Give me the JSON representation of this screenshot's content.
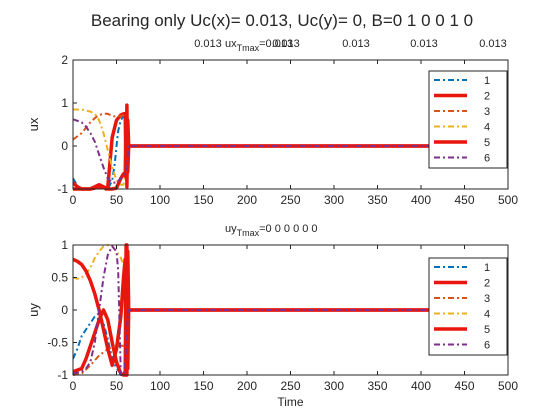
{
  "figure": {
    "title": "Bearing only    Uc(x)= 0.013, Uc(y)= 0, B=0  1  0  0  1  0"
  },
  "chart_data": [
    {
      "type": "line",
      "xlabel": "",
      "ylabel": "ux",
      "subtitle_prefix": "ux",
      "subtitle_sub": "Tmax",
      "subtitle_values": [
        "=0.013",
        "0.013",
        "0.013",
        "0.013",
        "0.013",
        "0.013"
      ],
      "xlim": [
        0,
        500
      ],
      "ylim": [
        -1,
        2
      ],
      "xticks": [
        0,
        50,
        100,
        150,
        200,
        250,
        300,
        350,
        400,
        450,
        500
      ],
      "yticks": [
        -1,
        0,
        1,
        2
      ],
      "grid": false,
      "legend_position": "top-right",
      "series": [
        {
          "name": "1",
          "color": "#0072BD",
          "style": "dashdot",
          "width": 2,
          "x": [
            0,
            5,
            10,
            15,
            20,
            25,
            30,
            35,
            40,
            45,
            48,
            50,
            52,
            55,
            58,
            60,
            62,
            63,
            64,
            500
          ],
          "y": [
            -0.75,
            -0.92,
            -1,
            -1,
            -0.97,
            -0.95,
            -0.95,
            -0.97,
            -1,
            -0.8,
            -0.4,
            0,
            0.35,
            0.6,
            0.7,
            0.7,
            0.7,
            0.3,
            0,
            0
          ]
        },
        {
          "name": "2",
          "color": "#E8160C",
          "style": "solid",
          "width": 3.5,
          "x": [
            0,
            10,
            20,
            25,
            30,
            35,
            38,
            40,
            42,
            45,
            50,
            55,
            58,
            60,
            61,
            62,
            63,
            64,
            500
          ],
          "y": [
            -1,
            -1,
            -1,
            -0.95,
            -0.9,
            -0.95,
            -1,
            -0.95,
            -0.5,
            0.2,
            0.6,
            0.72,
            0.75,
            0.75,
            -0.7,
            0.95,
            -0.6,
            0,
            0
          ]
        },
        {
          "name": "3",
          "color": "#D95319",
          "style": "dashdot",
          "width": 2,
          "x": [
            0,
            10,
            20,
            25,
            30,
            35,
            40,
            45,
            50,
            55,
            60,
            62,
            63,
            64,
            500
          ],
          "y": [
            0.15,
            0.3,
            0.55,
            0.65,
            0.72,
            0.75,
            0.75,
            0.7,
            0.68,
            0.7,
            0.72,
            0.72,
            0.3,
            0,
            0
          ]
        },
        {
          "name": "4",
          "color": "#EDB120",
          "style": "dashdot",
          "width": 2,
          "x": [
            0,
            10,
            20,
            25,
            30,
            35,
            40,
            45,
            50,
            55,
            58,
            60,
            62,
            63,
            64,
            500
          ],
          "y": [
            0.85,
            0.85,
            0.8,
            0.75,
            0.6,
            0.3,
            -0.1,
            -0.5,
            -0.8,
            -0.9,
            -0.9,
            -0.7,
            -0.4,
            -0.1,
            0,
            0
          ]
        },
        {
          "name": "5",
          "color": "#E8160C",
          "style": "solid",
          "width": 3.5,
          "x": [
            0,
            5,
            10,
            15,
            20,
            25,
            30,
            35,
            40,
            45,
            50,
            55,
            58,
            60,
            61,
            62,
            63,
            64,
            500
          ],
          "y": [
            -0.85,
            -0.95,
            -1,
            -1,
            -1,
            -0.98,
            -0.95,
            -0.95,
            -1,
            -1,
            -0.98,
            -0.75,
            -0.65,
            -0.7,
            0.7,
            -0.95,
            0.6,
            0,
            0
          ]
        },
        {
          "name": "6",
          "color": "#7E2F8E",
          "style": "dashdot",
          "width": 2,
          "x": [
            0,
            10,
            15,
            20,
            25,
            30,
            35,
            40,
            45,
            50,
            55,
            60,
            62,
            63,
            64,
            500
          ],
          "y": [
            0.62,
            0.55,
            0.45,
            0.3,
            0.1,
            -0.2,
            -0.5,
            -0.75,
            -0.85,
            -0.85,
            -0.75,
            -0.65,
            -0.6,
            -0.2,
            0,
            0
          ]
        }
      ]
    },
    {
      "type": "line",
      "xlabel": "Time",
      "ylabel": "uy",
      "subtitle_prefix": "uy",
      "subtitle_sub": "Tmax",
      "subtitle_values": [
        "=0  0  0  0  0  0"
      ],
      "xlim": [
        0,
        500
      ],
      "ylim": [
        -1,
        1
      ],
      "xticks": [
        0,
        50,
        100,
        150,
        200,
        250,
        300,
        350,
        400,
        450,
        500
      ],
      "yticks": [
        -1,
        -0.5,
        0,
        0.5,
        1
      ],
      "grid": false,
      "legend_position": "top-right",
      "series": [
        {
          "name": "1",
          "color": "#0072BD",
          "style": "dashdot",
          "width": 2,
          "x": [
            0,
            5,
            10,
            15,
            20,
            25,
            30,
            35,
            40,
            45,
            50,
            55,
            58,
            60,
            62,
            63,
            64,
            500
          ],
          "y": [
            -0.75,
            -0.6,
            -0.4,
            -0.3,
            -0.2,
            -0.1,
            -0.05,
            -0.2,
            -0.45,
            -0.75,
            -0.9,
            -0.98,
            -1,
            -0.9,
            -0.5,
            -0.2,
            0,
            0
          ]
        },
        {
          "name": "2",
          "color": "#E8160C",
          "style": "solid",
          "width": 3.5,
          "x": [
            0,
            10,
            15,
            20,
            25,
            30,
            35,
            40,
            45,
            50,
            55,
            58,
            60,
            61,
            62,
            63,
            64,
            500
          ],
          "y": [
            -0.95,
            -0.9,
            -0.75,
            -0.55,
            -0.35,
            -0.15,
            0,
            -0.15,
            -0.5,
            -0.8,
            -0.98,
            -1,
            -1,
            1,
            -1,
            0.9,
            0,
            0
          ]
        },
        {
          "name": "3",
          "color": "#D95319",
          "style": "dashdot",
          "width": 2,
          "x": [
            0,
            10,
            20,
            30,
            40,
            50,
            60,
            62,
            63,
            64,
            500
          ],
          "y": [
            -1,
            -0.98,
            -0.85,
            -0.7,
            -0.6,
            -0.55,
            -0.55,
            -0.6,
            -0.3,
            0,
            0
          ]
        },
        {
          "name": "4",
          "color": "#EDB120",
          "style": "dashdot",
          "width": 2,
          "x": [
            0,
            5,
            10,
            15,
            20,
            25,
            30,
            35,
            40,
            45,
            50,
            55,
            58,
            60,
            62,
            63,
            64,
            500
          ],
          "y": [
            0.5,
            0.48,
            0.5,
            0.55,
            0.65,
            0.8,
            0.9,
            0.98,
            1,
            0.98,
            0.9,
            0.8,
            0.7,
            0.5,
            0.2,
            0.05,
            0,
            0
          ]
        },
        {
          "name": "5",
          "color": "#E8160C",
          "style": "solid",
          "width": 3.5,
          "x": [
            0,
            5,
            10,
            15,
            20,
            25,
            30,
            35,
            40,
            45,
            50,
            55,
            58,
            60,
            61,
            62,
            63,
            64,
            500
          ],
          "y": [
            0.78,
            0.75,
            0.7,
            0.6,
            0.45,
            0.25,
            0,
            -0.3,
            -0.6,
            -0.85,
            -0.6,
            -0.1,
            0.5,
            0.78,
            -1,
            1,
            -0.9,
            0,
            0
          ]
        },
        {
          "name": "6",
          "color": "#7E2F8E",
          "style": "dashdot",
          "width": 2,
          "x": [
            0,
            10,
            15,
            20,
            25,
            30,
            35,
            40,
            45,
            50,
            52,
            55,
            58,
            60,
            62,
            63,
            64,
            500
          ],
          "y": [
            -0.98,
            -0.95,
            -0.9,
            -0.8,
            -0.5,
            0,
            0.5,
            0.85,
            0.98,
            0.9,
            0.6,
            -1,
            -1,
            -0.8,
            -0.4,
            -0.1,
            0,
            0
          ]
        }
      ]
    }
  ]
}
